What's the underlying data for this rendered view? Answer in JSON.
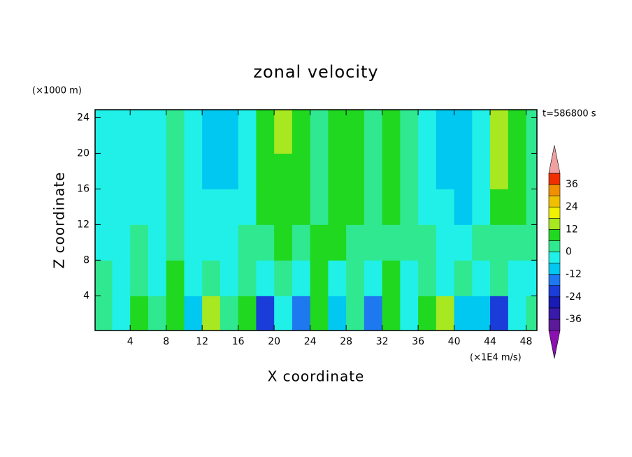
{
  "chart_data": {
    "type": "heatmap",
    "title": "zonal velocity",
    "x_label": "X coordinate",
    "y_label": "Z coordinate",
    "y_unit": "(×1000 m)",
    "x_unit": "(×1E4 m/s)",
    "time_label": "t=586800 s",
    "xlim": [
      0.1,
      49.2
    ],
    "ylim": [
      0.1,
      24.9
    ],
    "xticks": [
      4,
      8,
      12,
      16,
      20,
      24,
      28,
      32,
      36,
      40,
      44,
      48
    ],
    "yticks": [
      4,
      8,
      12,
      16,
      20,
      24
    ],
    "x": [
      1,
      3,
      5,
      7,
      9,
      11,
      13,
      15,
      17,
      19,
      21,
      23,
      25,
      27,
      29,
      31,
      33,
      35,
      37,
      39,
      41,
      43,
      45,
      47,
      49
    ],
    "y": [
      2,
      6,
      10,
      14,
      18,
      22
    ],
    "z": [
      [
        4,
        -2,
        6,
        0,
        8,
        -8,
        14,
        4,
        6,
        -20,
        -6,
        -14,
        8,
        -10,
        4,
        -14,
        6,
        -4,
        10,
        14,
        -8,
        -10,
        -24,
        -4,
        2
      ],
      [
        2,
        -4,
        4,
        -6,
        6,
        -4,
        4,
        -6,
        4,
        -2,
        4,
        -2,
        6,
        -2,
        4,
        -4,
        8,
        -4,
        4,
        -2,
        4,
        -4,
        2,
        -2,
        -2
      ],
      [
        -2,
        -4,
        2,
        -2,
        4,
        -4,
        -4,
        -2,
        2,
        4,
        6,
        4,
        6,
        8,
        4,
        4,
        4,
        2,
        2,
        -4,
        -4,
        2,
        4,
        4,
        2
      ],
      [
        -4,
        -3,
        -3,
        -2,
        0,
        -4,
        -6,
        -6,
        -2,
        6,
        8,
        6,
        2,
        8,
        6,
        2,
        6,
        2,
        -2,
        -6,
        -8,
        -4,
        8,
        6,
        2
      ],
      [
        -4,
        -4,
        -4,
        -2,
        2,
        -4,
        -8,
        -8,
        -2,
        8,
        10,
        6,
        2,
        6,
        8,
        2,
        6,
        2,
        -4,
        -8,
        -10,
        -4,
        12,
        8,
        2
      ],
      [
        -4,
        -4,
        -4,
        -2,
        2,
        -4,
        -8,
        -8,
        -4,
        8,
        12,
        8,
        2,
        6,
        8,
        2,
        8,
        2,
        -4,
        -8,
        -8,
        -4,
        14,
        8,
        2
      ]
    ],
    "levels": [
      -42,
      -36,
      -30,
      -24,
      -18,
      -12,
      -6,
      0,
      6,
      12,
      18,
      24,
      30,
      36,
      42
    ],
    "colors": [
      "#5a1a9a",
      "#3a1aa8",
      "#1a1ab4",
      "#1a3cd8",
      "#1e78f0",
      "#00c8f0",
      "#20f0e8",
      "#30e890",
      "#20d820",
      "#a8e820",
      "#f0f000",
      "#f0c000",
      "#f09000",
      "#f03000"
    ],
    "extend_colors": [
      "#8a10b0",
      "#f0a0a0"
    ],
    "cbar_ticks": [
      -36,
      -24,
      -12,
      0,
      12,
      24,
      36
    ]
  }
}
